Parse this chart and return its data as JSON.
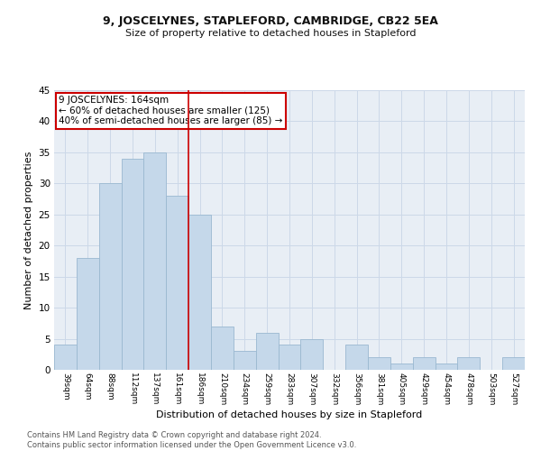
{
  "title": "9, JOSCELYNES, STAPLEFORD, CAMBRIDGE, CB22 5EA",
  "subtitle": "Size of property relative to detached houses in Stapleford",
  "xlabel": "Distribution of detached houses by size in Stapleford",
  "ylabel": "Number of detached properties",
  "bar_color": "#c5d8ea",
  "bar_edge_color": "#9ab8d0",
  "categories": [
    "39sqm",
    "64sqm",
    "88sqm",
    "112sqm",
    "137sqm",
    "161sqm",
    "186sqm",
    "210sqm",
    "234sqm",
    "259sqm",
    "283sqm",
    "307sqm",
    "332sqm",
    "356sqm",
    "381sqm",
    "405sqm",
    "429sqm",
    "454sqm",
    "478sqm",
    "503sqm",
    "527sqm"
  ],
  "values": [
    4,
    18,
    30,
    34,
    35,
    28,
    25,
    7,
    3,
    6,
    4,
    5,
    0,
    4,
    2,
    1,
    2,
    1,
    2,
    0,
    2
  ],
  "vline_x": 5.5,
  "vline_color": "#cc0000",
  "annotation_text": "9 JOSCELYNES: 164sqm\n← 60% of detached houses are smaller (125)\n40% of semi-detached houses are larger (85) →",
  "annotation_box_color": "#ffffff",
  "annotation_box_edge": "#cc0000",
  "ylim": [
    0,
    45
  ],
  "yticks": [
    0,
    5,
    10,
    15,
    20,
    25,
    30,
    35,
    40,
    45
  ],
  "footer": "Contains HM Land Registry data © Crown copyright and database right 2024.\nContains public sector information licensed under the Open Government Licence v3.0.",
  "grid_color": "#ccd8e8",
  "background_color": "#e8eef5",
  "title_fontsize": 9,
  "subtitle_fontsize": 8,
  "ylabel_fontsize": 8,
  "xlabel_fontsize": 8,
  "footer_fontsize": 6,
  "annotation_fontsize": 7.5
}
